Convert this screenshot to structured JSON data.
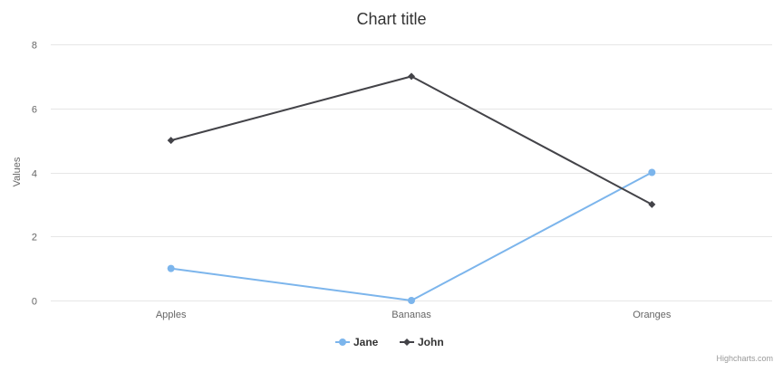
{
  "chart_data": {
    "type": "line",
    "title": "Chart title",
    "ylabel": "Values",
    "xlabel": "",
    "categories": [
      "Apples",
      "Bananas",
      "Oranges"
    ],
    "ylim": [
      0,
      8
    ],
    "yticks": [
      0,
      2,
      4,
      6,
      8
    ],
    "grid": true,
    "legend_position": "bottom-center",
    "series": [
      {
        "name": "Jane",
        "values": [
          1,
          0,
          4
        ],
        "color": "#7cb5ec",
        "marker": "circle"
      },
      {
        "name": "John",
        "values": [
          5,
          7,
          3
        ],
        "color": "#434348",
        "marker": "diamond"
      }
    ]
  },
  "credits": "Highcharts.com"
}
